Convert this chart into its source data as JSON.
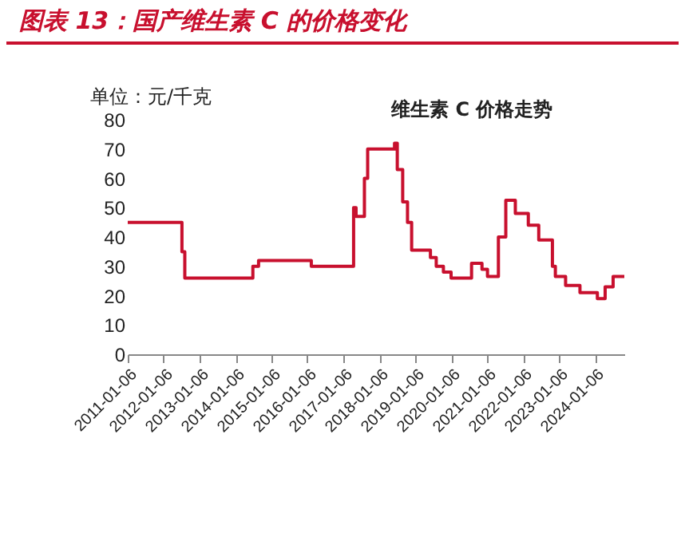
{
  "chart_data": {
    "type": "step",
    "title": "图表 13：国产维生素 C 的价格变化",
    "ylabel": "单位：元/千克",
    "x": [
      "2011-01-06",
      "2012-07-10",
      "2012-08-08",
      "2014-07-01",
      "2014-08-28",
      "2016-02-15",
      "2017-04-20",
      "2017-05-15",
      "2017-08-08",
      "2017-09-10",
      "2018-06-10",
      "2018-07-08",
      "2018-09-01",
      "2018-10-20",
      "2018-12-01",
      "2019-06-10",
      "2019-08-08",
      "2019-10-20",
      "2020-01-06",
      "2020-08-01",
      "2020-11-15",
      "2021-01-10",
      "2021-05-01",
      "2021-07-15",
      "2021-10-20",
      "2022-03-01",
      "2022-06-15",
      "2022-11-01",
      "2022-12-01",
      "2023-03-15",
      "2023-08-08",
      "2024-02-01",
      "2024-04-20",
      "2024-07-10",
      "2024-11-01"
    ],
    "series": [
      {
        "name": "维生素 C 价格走势",
        "color": "#c8102e",
        "values": [
          45,
          35,
          26,
          30,
          32,
          30,
          50,
          47,
          60,
          70,
          72,
          63,
          52,
          45,
          35.5,
          33,
          30,
          28,
          26,
          31,
          29,
          26.5,
          40,
          52.5,
          48,
          44,
          39,
          30,
          26.5,
          23.5,
          21,
          19,
          23,
          26.5,
          26.5
        ]
      }
    ],
    "xlim": [
      "2011-01-06",
      "2024-11-01"
    ],
    "xticks": [
      "2011-01-06",
      "2012-01-06",
      "2013-01-06",
      "2014-01-06",
      "2015-01-06",
      "2016-01-06",
      "2017-01-06",
      "2018-01-06",
      "2019-01-06",
      "2020-01-06",
      "2021-01-06",
      "2022-01-06",
      "2023-01-06",
      "2024-01-06"
    ],
    "ylim": [
      0,
      80
    ],
    "yticks": [
      0,
      10,
      20,
      30,
      40,
      50,
      60,
      70,
      80
    ],
    "grid": false
  }
}
